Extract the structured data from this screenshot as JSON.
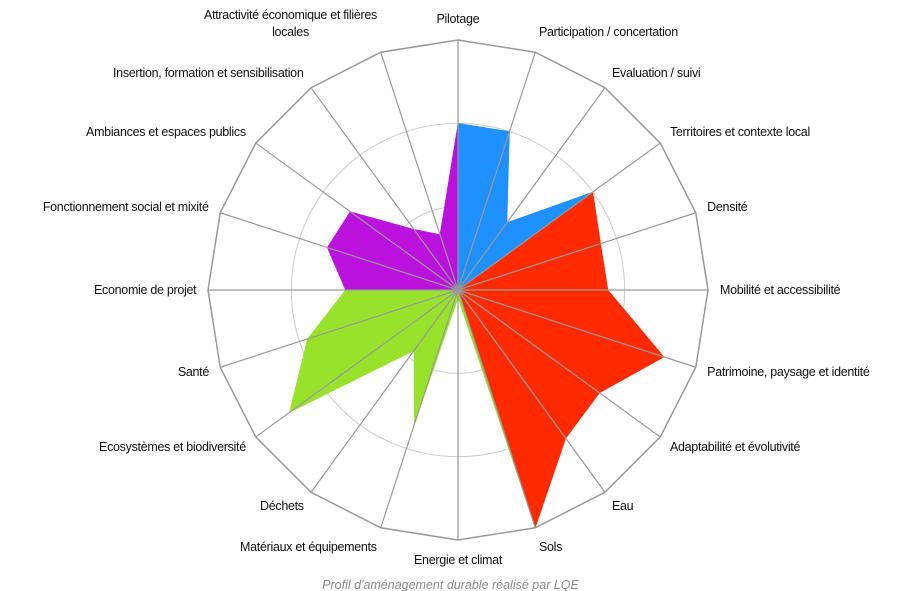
{
  "chart_data": {
    "type": "radar",
    "categories": [
      "Pilotage",
      "Participation / concertation",
      "Evaluation / suivi",
      "Territoires et contexte local",
      "Densité",
      "Mobilité et accessibilité",
      "Patrimoine, paysage et identité",
      "Adaptabilité et évolutivité",
      "Eau",
      "Sols",
      "Energie et climat",
      "Matériaux et équipements",
      "Déchets",
      "Ecosystèmes et biodiversité",
      "Santé",
      "Economie de projet",
      "Fonctionnement social  et mixité",
      "Ambiances et espaces publics",
      "Insertion, formation et sensibilisation",
      "Attractivité économique et filières\nlocales"
    ],
    "values": [
      2,
      2,
      1,
      2,
      1.8,
      1.8,
      2.6,
      2.1,
      2.2,
      3,
      0.1,
      1.7,
      0.9,
      2.5,
      1.9,
      1.35,
      1.65,
      1.6,
      0.9,
      0.7
    ],
    "segment_colors": [
      "#1e90ff",
      "#1e90ff",
      "#1e90ff",
      "#ff2a00",
      "#ff2a00",
      "#ff2a00",
      "#ff2a00",
      "#ff2a00",
      "#ff2a00",
      "#99e22b",
      "#99e22b",
      "#99e22b",
      "#99e22b",
      "#99e22b",
      "#99e22b",
      "#bb11dd",
      "#bb11dd",
      "#bb11dd",
      "#bb11dd",
      "#bb11dd"
    ],
    "ylim": [
      0,
      3
    ],
    "yticks": [
      0,
      1,
      2,
      3
    ],
    "grid": true,
    "caption": "Profil d'aménagement durable réalisé par LQE"
  }
}
